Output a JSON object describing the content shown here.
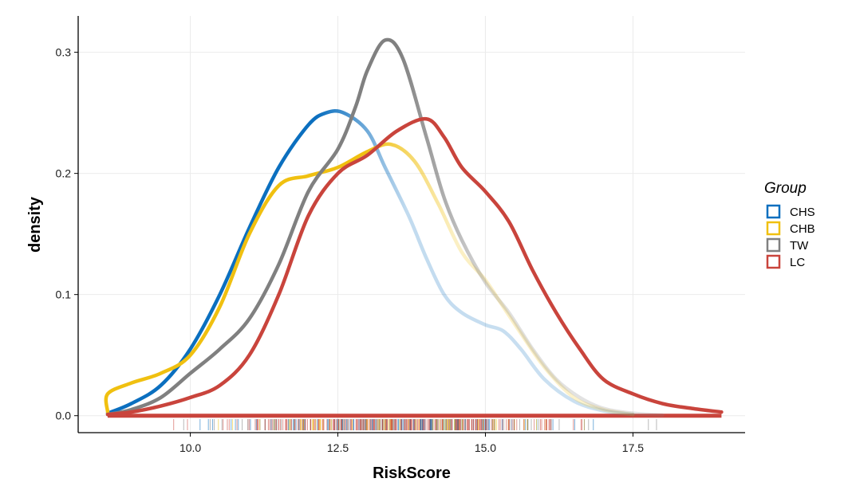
{
  "chart_data": {
    "type": "density",
    "title": "",
    "xlabel": "RiskScore",
    "ylabel": "density",
    "xlim": [
      8.1,
      19.4
    ],
    "ylim": [
      -0.014,
      0.33
    ],
    "x_ticks": [
      10.0,
      12.5,
      15.0,
      17.5
    ],
    "x_tick_labels": [
      "10.0",
      "12.5",
      "15.0",
      "17.5"
    ],
    "y_ticks": [
      0.0,
      0.1,
      0.2,
      0.3
    ],
    "y_tick_labels": [
      "0.0",
      "0.1",
      "0.2",
      "0.3"
    ],
    "grid": true,
    "legend": {
      "title": "Group",
      "position": "right"
    },
    "series": [
      {
        "name": "CHS",
        "color": "#0b6fbf",
        "x": [
          8.6,
          9.0,
          9.5,
          10.0,
          10.5,
          11.0,
          11.5,
          12.0,
          12.3,
          12.6,
          13.0,
          13.3,
          13.7,
          14.0,
          14.3,
          14.6,
          15.0,
          15.3,
          15.6,
          16.0,
          16.5,
          17.0,
          17.5
        ],
        "y": [
          0.002,
          0.01,
          0.025,
          0.055,
          0.1,
          0.155,
          0.205,
          0.24,
          0.25,
          0.25,
          0.235,
          0.205,
          0.165,
          0.13,
          0.1,
          0.085,
          0.075,
          0.07,
          0.055,
          0.03,
          0.012,
          0.004,
          0.001
        ],
        "fade_from_x": 12.6
      },
      {
        "name": "CHB",
        "color": "#f0c010",
        "x": [
          8.6,
          8.6,
          9.0,
          9.5,
          10.0,
          10.5,
          11.0,
          11.5,
          12.0,
          12.5,
          13.0,
          13.4,
          13.8,
          14.2,
          14.6,
          15.0,
          15.3,
          15.6,
          16.0,
          16.5,
          17.0,
          17.5
        ],
        "y": [
          0.003,
          0.018,
          0.027,
          0.035,
          0.05,
          0.09,
          0.15,
          0.19,
          0.198,
          0.205,
          0.218,
          0.224,
          0.21,
          0.175,
          0.135,
          0.112,
          0.09,
          0.068,
          0.04,
          0.015,
          0.005,
          0.001
        ],
        "fade_from_x": 13.4
      },
      {
        "name": "TW",
        "color": "#808080",
        "x": [
          8.6,
          9.0,
          9.5,
          10.0,
          10.5,
          11.0,
          11.5,
          12.0,
          12.5,
          12.8,
          13.0,
          13.3,
          13.6,
          14.0,
          14.3,
          14.6,
          15.0,
          15.4,
          15.8,
          16.2,
          16.6,
          17.0,
          17.5,
          18.0
        ],
        "y": [
          0.001,
          0.005,
          0.015,
          0.035,
          0.055,
          0.08,
          0.125,
          0.185,
          0.22,
          0.255,
          0.285,
          0.31,
          0.295,
          0.23,
          0.18,
          0.145,
          0.11,
          0.085,
          0.055,
          0.03,
          0.015,
          0.006,
          0.002,
          0.0005
        ],
        "fade_from_x": 14.0
      },
      {
        "name": "LC",
        "color": "#c9443c",
        "x": [
          8.6,
          9.0,
          9.5,
          10.0,
          10.5,
          11.0,
          11.5,
          12.0,
          12.5,
          13.0,
          13.5,
          14.0,
          14.3,
          14.6,
          15.0,
          15.4,
          15.8,
          16.2,
          16.6,
          17.0,
          17.5,
          18.0,
          18.5,
          19.0
        ],
        "y": [
          0.001,
          0.003,
          0.008,
          0.015,
          0.025,
          0.05,
          0.1,
          0.165,
          0.2,
          0.215,
          0.235,
          0.245,
          0.23,
          0.205,
          0.185,
          0.16,
          0.12,
          0.085,
          0.055,
          0.03,
          0.018,
          0.01,
          0.006,
          0.003
        ]
      }
    ],
    "rug": {
      "range": [
        8.6,
        19.0
      ],
      "dense_range": [
        9.5,
        17.8
      ]
    }
  }
}
